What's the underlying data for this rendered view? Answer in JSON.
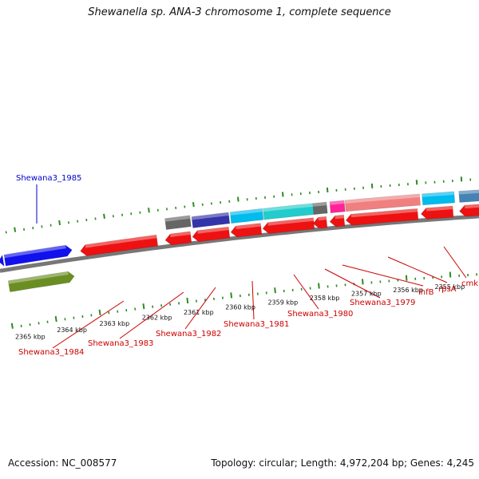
{
  "title": "Shewanella sp. ANA-3 chromosome 1, complete sequence",
  "footer": {
    "accession": "Accession: NC_008577",
    "summary": "Topology: circular; Length: 4,972,204 bp; Genes: 4,245"
  },
  "ruler": {
    "labels": [
      "2365 kbp",
      "2364 kbp",
      "2363 kbp",
      "2362 kbp",
      "2361 kbp",
      "2360 kbp",
      "2359 kbp",
      "2358 kbp",
      "2357 kbp",
      "2356 kbp",
      "2355 kbp"
    ]
  },
  "colors": {
    "red": "#ee1111",
    "blue": "#1111ee",
    "olive": "#6b8e23",
    "cyan": "#00bbee",
    "teal": "#22cccc",
    "navy": "#3333aa",
    "gray": "#666666",
    "pink": "#ff2299",
    "salmon": "#f08080",
    "steel": "#4682b4",
    "backbone": "#777777",
    "tick": "#2e8b22",
    "gene_label": "#cc0000",
    "gene_label_blue": "#0000cc"
  },
  "gene_labels": [
    {
      "text": "Shewana3_1985",
      "color": "blue"
    },
    {
      "text": "Shewana3_1984",
      "color": "red"
    },
    {
      "text": "Shewana3_1983",
      "color": "red"
    },
    {
      "text": "Shewana3_1982",
      "color": "red"
    },
    {
      "text": "Shewana3_1981",
      "color": "red"
    },
    {
      "text": "Shewana3_1980",
      "color": "red"
    },
    {
      "text": "Shewana3_1979",
      "color": "red"
    },
    {
      "text": "ihfB",
      "color": "red"
    },
    {
      "text": "rpsA",
      "color": "red"
    },
    {
      "text": "cmk",
      "color": "red"
    }
  ]
}
